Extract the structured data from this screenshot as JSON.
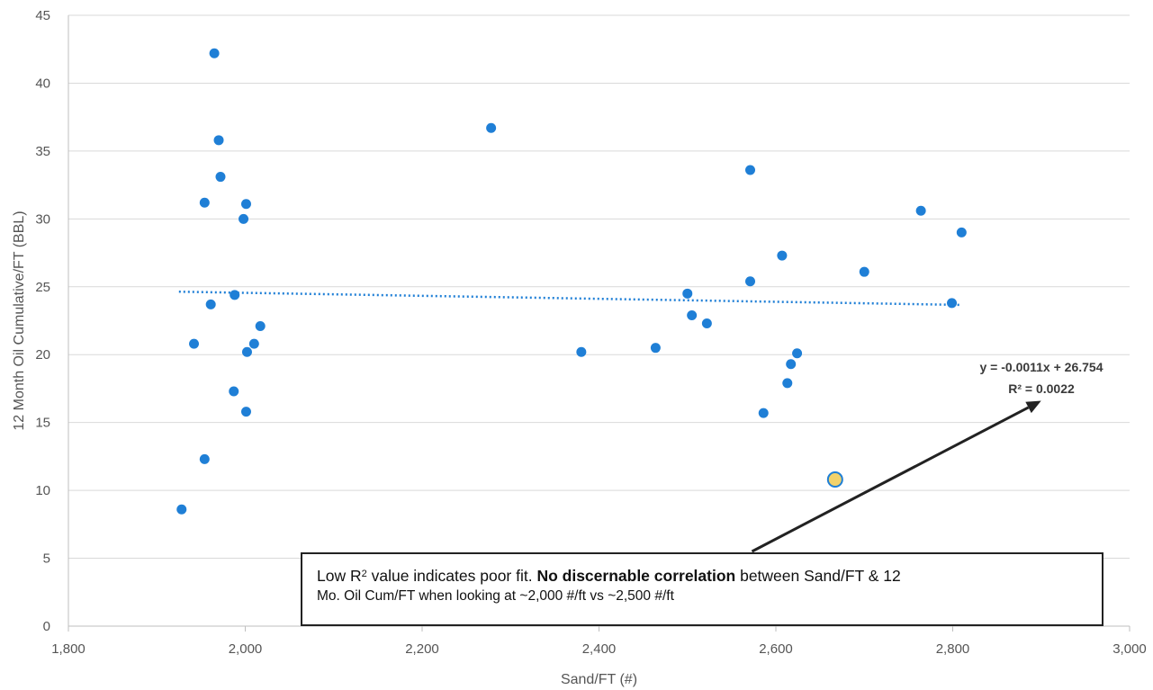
{
  "chart_data": {
    "type": "scatter",
    "xlabel": "Sand/FT (#)",
    "ylabel": "12 Month Oil Cumulative/FT (BBL)",
    "xlim": [
      1800,
      3000
    ],
    "ylim": [
      0,
      45
    ],
    "x_ticks": [
      "1,800",
      "2,000",
      "2,200",
      "2,400",
      "2,600",
      "2,800",
      "3,000"
    ],
    "y_ticks": [
      "0",
      "5",
      "10",
      "15",
      "20",
      "25",
      "30",
      "35",
      "40",
      "45"
    ],
    "grid": "horizontal",
    "point_color": "#1f7fd6",
    "points": [
      {
        "x": 1965,
        "y": 42.2
      },
      {
        "x": 1970,
        "y": 35.8
      },
      {
        "x": 1972,
        "y": 33.1
      },
      {
        "x": 1954,
        "y": 31.2
      },
      {
        "x": 2001,
        "y": 31.1
      },
      {
        "x": 1998,
        "y": 30.0
      },
      {
        "x": 1988,
        "y": 24.4
      },
      {
        "x": 1961,
        "y": 23.7
      },
      {
        "x": 2017,
        "y": 22.1
      },
      {
        "x": 1942,
        "y": 20.8
      },
      {
        "x": 2010,
        "y": 20.8
      },
      {
        "x": 2002,
        "y": 20.2
      },
      {
        "x": 1987,
        "y": 17.3
      },
      {
        "x": 2001,
        "y": 15.8
      },
      {
        "x": 1954,
        "y": 12.3
      },
      {
        "x": 1928,
        "y": 8.6
      },
      {
        "x": 2278,
        "y": 36.7
      },
      {
        "x": 2380,
        "y": 20.2
      },
      {
        "x": 2464,
        "y": 20.5
      },
      {
        "x": 2500,
        "y": 24.5
      },
      {
        "x": 2505,
        "y": 22.9
      },
      {
        "x": 2522,
        "y": 22.3
      },
      {
        "x": 2571,
        "y": 33.6
      },
      {
        "x": 2571,
        "y": 25.4
      },
      {
        "x": 2586,
        "y": 15.7
      },
      {
        "x": 2607,
        "y": 27.3
      },
      {
        "x": 2613,
        "y": 17.9
      },
      {
        "x": 2617,
        "y": 19.3
      },
      {
        "x": 2624,
        "y": 20.1
      },
      {
        "x": 2700,
        "y": 26.1
      },
      {
        "x": 2764,
        "y": 30.6
      },
      {
        "x": 2799,
        "y": 23.8
      },
      {
        "x": 2810,
        "y": 29.0
      }
    ],
    "highlight_point": {
      "x": 2667,
      "y": 10.8,
      "color": "#f2d26b"
    },
    "trendline": {
      "type": "linear",
      "x_range": [
        1925,
        2810
      ],
      "slope": -0.0011,
      "intercept": 26.754,
      "color": "#1f7fd6",
      "style": "dotted"
    },
    "annotations": {
      "equation": "y = -0.0011x + 26.754",
      "r_squared": "R² = 0.0022"
    },
    "arrow": {
      "from": [
        2573,
        5.5
      ],
      "to": [
        2900,
        16.6
      ]
    }
  },
  "callout": {
    "p1": "Low R",
    "p1_sup": "2",
    "p2": " value indicates poor fit. ",
    "bold": "No discernable correlation",
    "p3": " between Sand/FT & 12",
    "line2": "Mo. Oil Cum/FT when looking at ~2,000 #/ft vs ~2,500 #/ft"
  }
}
